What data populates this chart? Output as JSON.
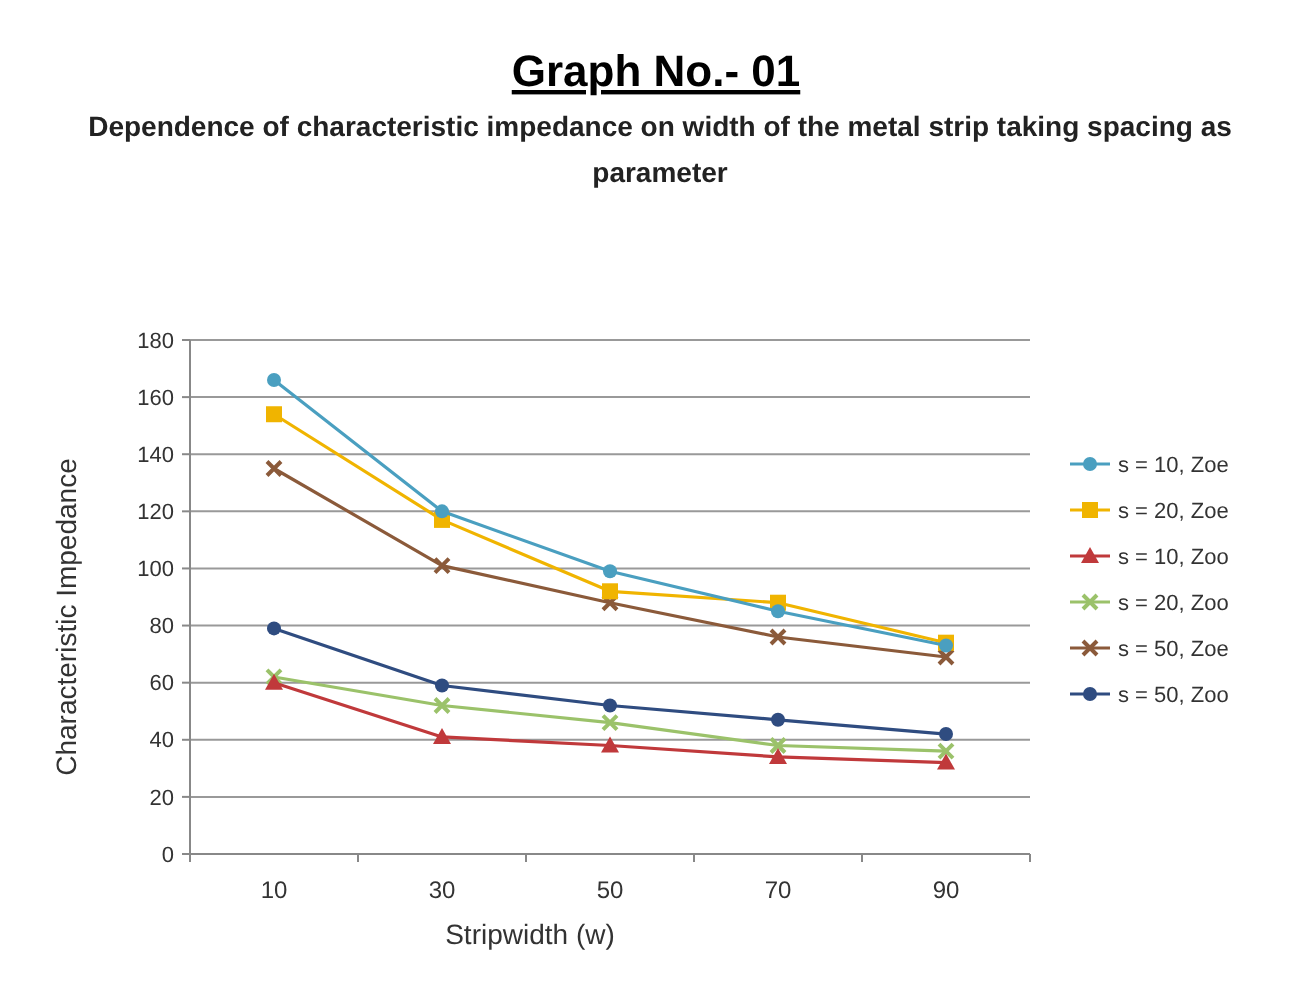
{
  "chart_data": {
    "type": "line",
    "title": "Graph No.- 01",
    "subtitle": "Dependence of characteristic  impedance on width of the metal strip taking spacing as parameter",
    "xlabel": "Stripwidth (w)",
    "ylabel": "Characteristic Impedance",
    "categories": [
      "10",
      "30",
      "50",
      "70",
      "90"
    ],
    "ylim": [
      0,
      180
    ],
    "yticks": [
      0,
      20,
      40,
      60,
      80,
      100,
      120,
      140,
      160,
      180
    ],
    "grid": "y",
    "legend": "right",
    "series": [
      {
        "name": "s = 10, Zoe",
        "color": "#4a9fc0",
        "marker": "circle",
        "values": [
          166,
          120,
          99,
          85,
          73
        ]
      },
      {
        "name": "s = 20, Zoe",
        "color": "#f0b400",
        "marker": "square",
        "values": [
          154,
          117,
          92,
          88,
          74
        ]
      },
      {
        "name": "s = 10, Zoo",
        "color": "#c0393b",
        "marker": "triangle",
        "values": [
          60,
          41,
          38,
          34,
          32
        ]
      },
      {
        "name": "s = 20, Zoo",
        "color": "#9bc26a",
        "marker": "cross",
        "values": [
          62,
          52,
          46,
          38,
          36
        ]
      },
      {
        "name": "s = 50, Zoe",
        "color": "#8b5a3a",
        "marker": "cross",
        "values": [
          135,
          101,
          88,
          76,
          69
        ]
      },
      {
        "name": "s = 50, Zoo",
        "color": "#2f4c80",
        "marker": "circle",
        "values": [
          79,
          59,
          52,
          47,
          42
        ]
      }
    ]
  }
}
